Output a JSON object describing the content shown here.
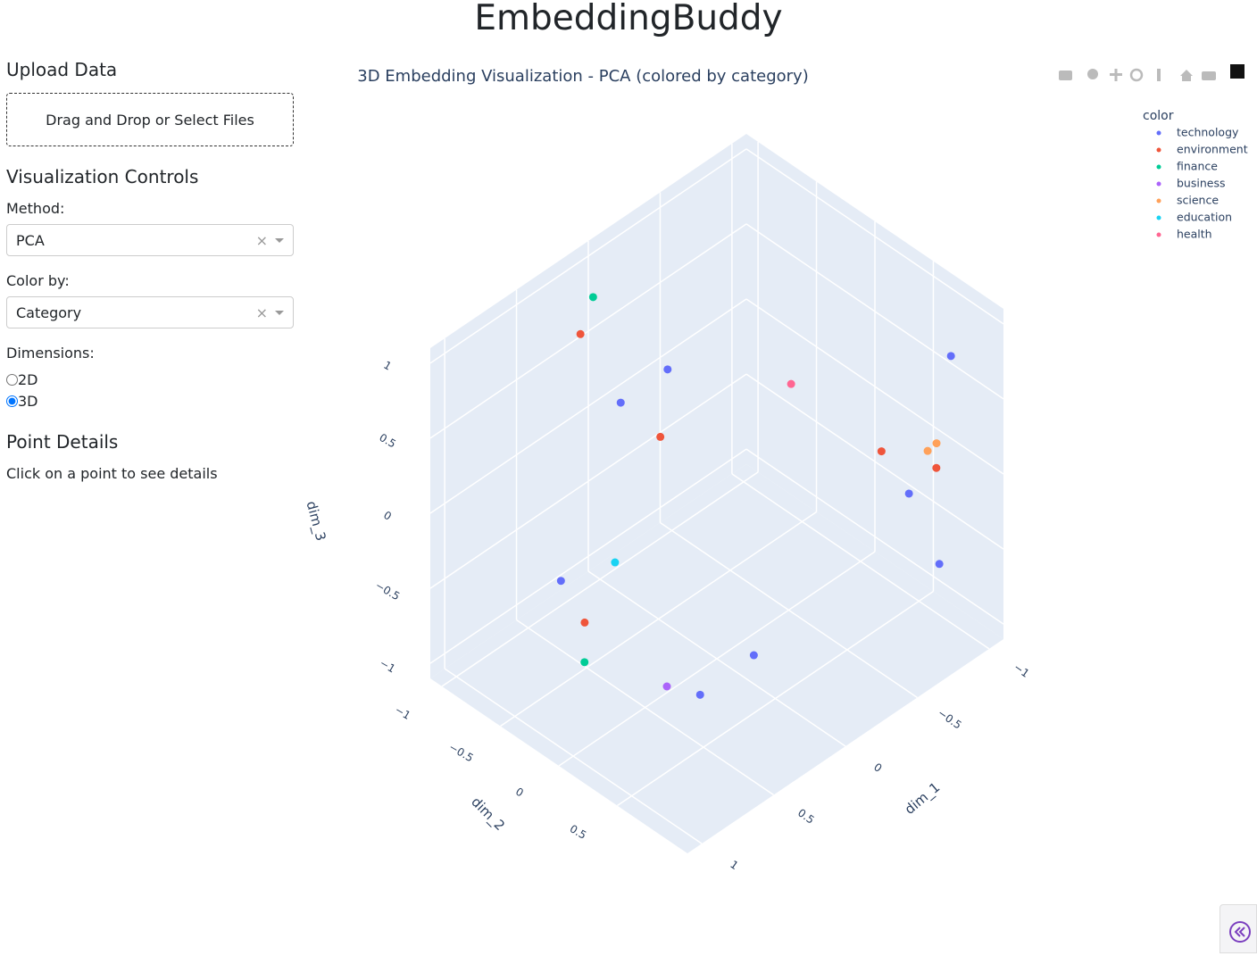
{
  "header": {
    "title": "EmbeddingBuddy"
  },
  "sidebar": {
    "upload_heading": "Upload Data",
    "upload_prompt": "Drag and Drop or Select Files",
    "controls_heading": "Visualization Controls",
    "method_label": "Method:",
    "method_value": "PCA",
    "color_label": "Color by:",
    "color_value": "Category",
    "dimensions_label": "Dimensions:",
    "dimension_options": [
      "2D",
      "3D"
    ],
    "selected_dimension": "3D",
    "details_heading": "Point Details",
    "details_text": "Click on a point to see details"
  },
  "chart_data": {
    "type": "scatter3d",
    "title": "3D Embedding Visualization - PCA (colored by category)",
    "legend_title": "color",
    "legend_position": "top-right",
    "x_label": "dim_1",
    "y_label": "dim_2",
    "z_label": "dim_3",
    "xlim": [
      -1.1,
      1.1
    ],
    "ylim": [
      -1.1,
      1.1
    ],
    "zlim": [
      -1.1,
      1.1
    ],
    "xticks": [
      {
        "value": -1,
        "label": "−1"
      },
      {
        "value": -0.5,
        "label": "−0.5"
      },
      0,
      0.5,
      1
    ],
    "yticks": [
      {
        "value": -1,
        "label": "−1"
      },
      {
        "value": -0.5,
        "label": "−0.5"
      },
      0,
      0.5
    ],
    "zticks": [
      {
        "value": -1,
        "label": "−1"
      },
      {
        "value": -0.5,
        "label": "−0.5"
      },
      0,
      0.5,
      1
    ],
    "grid": true,
    "series": [
      {
        "name": "technology",
        "color": "#636efa",
        "x": [
          -0.08,
          0.1,
          -1.06,
          -0.67,
          -0.8,
          0.76,
          0.32,
          -0.07
        ],
        "y": [
          -0.52,
          -0.7,
          0.7,
          0.82,
          0.92,
          -0.4,
          0.25,
          0.23
        ],
        "z": [
          0.5,
          0.3,
          0.6,
          0,
          -0.5,
          -0.3,
          -1.0,
          -1.0
        ]
      },
      {
        "name": "environment",
        "color": "#ef553b",
        "x": [
          0.12,
          0.06,
          -0.56,
          -0.82,
          0.66
        ],
        "y": [
          -1.02,
          -0.41,
          0.72,
          0.87,
          -0.32
        ],
        "z": [
          0.6,
          0.2,
          0.3,
          0.1,
          -0.6
        ]
      },
      {
        "name": "finance",
        "color": "#00cc96",
        "x": [
          0.04,
          0.71
        ],
        "y": [
          -1.01,
          -0.26
        ],
        "z": [
          0.8,
          -0.8
        ]
      },
      {
        "name": "business",
        "color": "#ab63fa",
        "x": [
          0.47
        ],
        "y": [
          0.15
        ],
        "z": [
          -0.9
        ]
      },
      {
        "name": "science",
        "color": "#ffa15a",
        "x": [
          -0.87,
          -0.8
        ],
        "y": [
          0.81,
          0.82
        ],
        "z": [
          0.2,
          0.2
        ]
      },
      {
        "name": "education",
        "color": "#19d3f3",
        "x": [
          0.4
        ],
        "y": [
          -0.38
        ],
        "z": [
          -0.4
        ]
      },
      {
        "name": "health",
        "color": "#ff6692",
        "x": [
          -0.59
        ],
        "y": [
          -0.09
        ],
        "z": [
          0.3
        ]
      }
    ]
  }
}
